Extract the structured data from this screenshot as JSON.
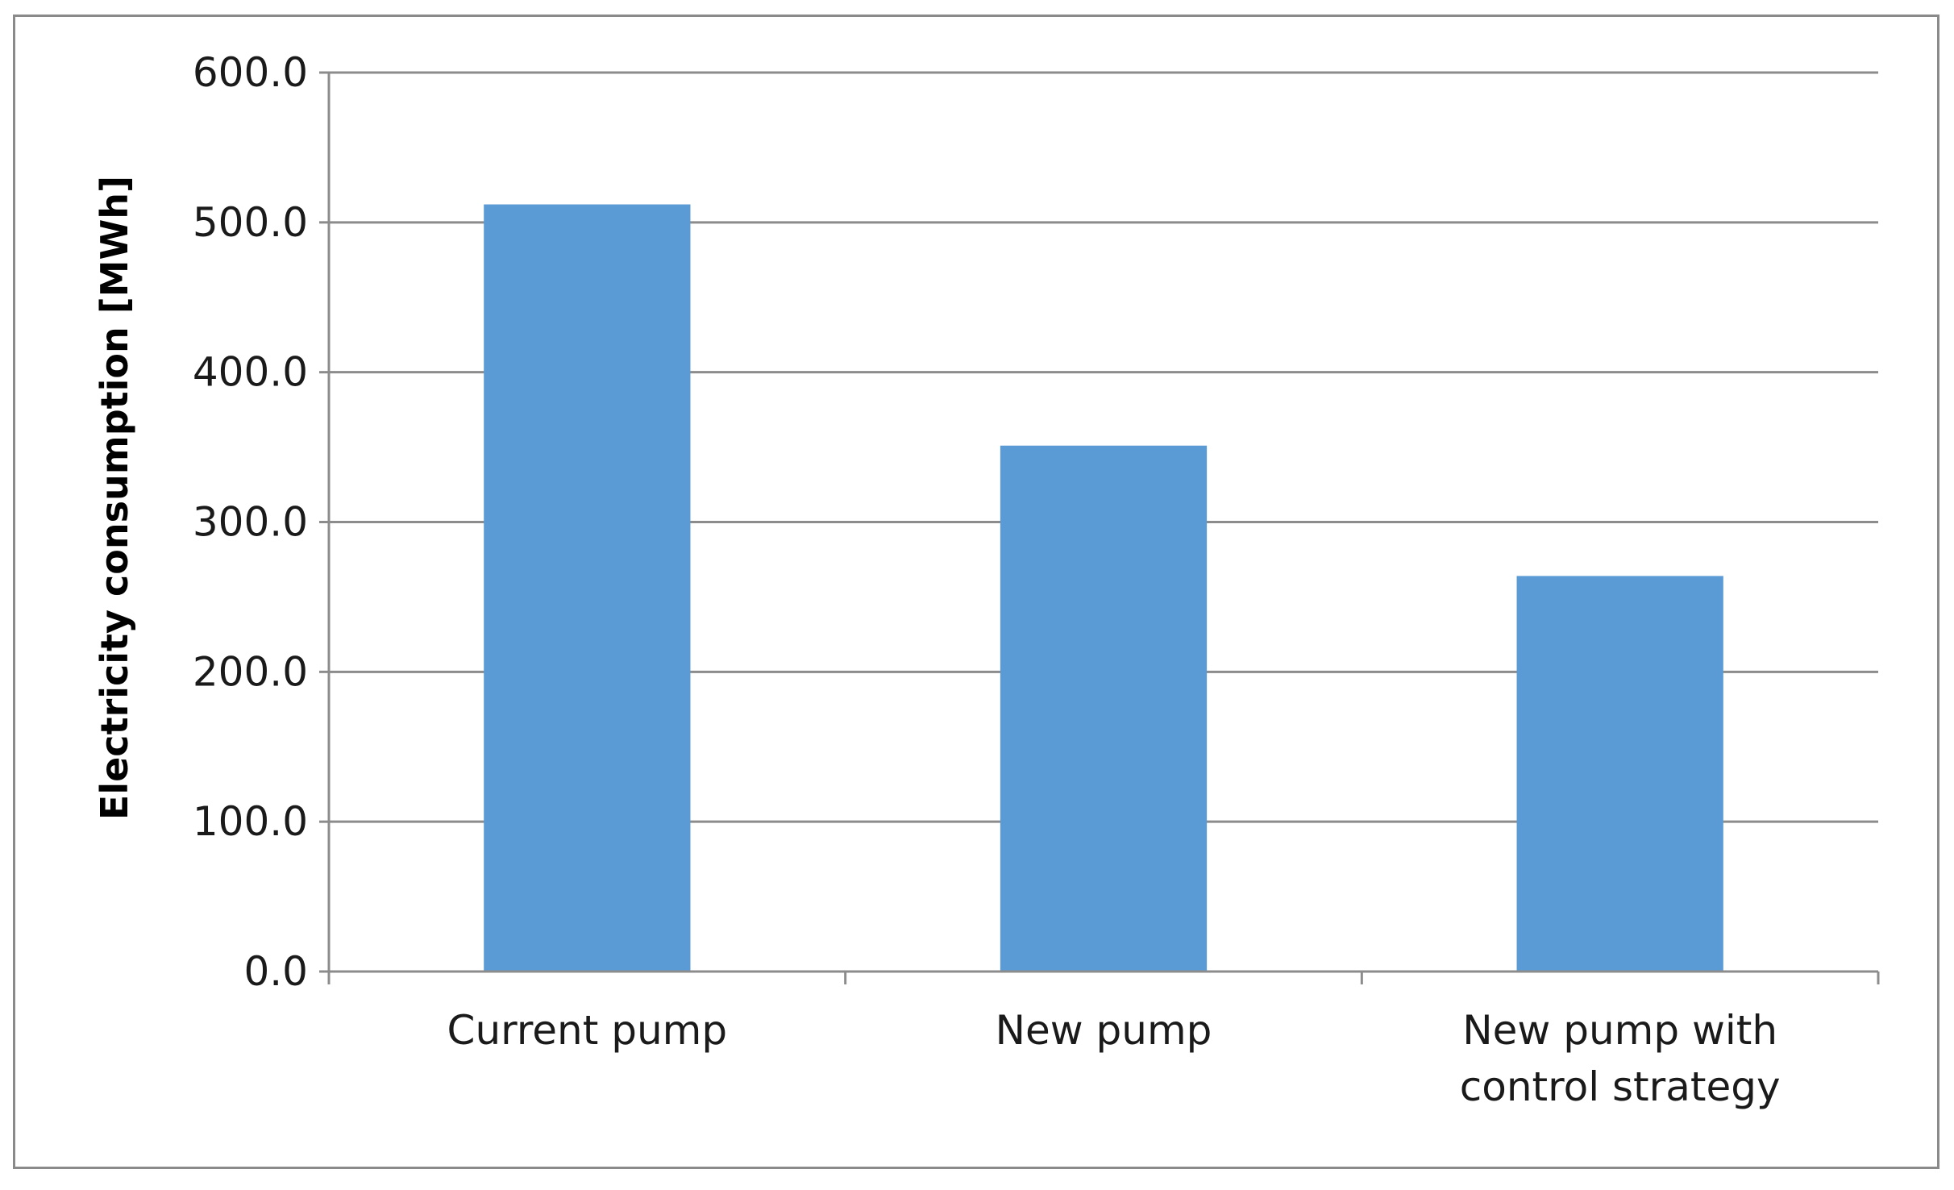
{
  "chart_data": {
    "type": "bar",
    "title": "",
    "xlabel": "",
    "ylabel": "Electricity consumption [MWh]",
    "categories": [
      [
        "Current pump"
      ],
      [
        "New pump"
      ],
      [
        "New pump with",
        "control strategy"
      ]
    ],
    "category_names": [
      "Current pump",
      "New pump",
      "New pump with control strategy"
    ],
    "values": [
      512,
      351,
      264
    ],
    "ylim": [
      0,
      600
    ],
    "yticks": [
      0,
      100,
      200,
      300,
      400,
      500,
      600
    ],
    "ytick_labels": [
      "0.0",
      "100.0",
      "200.0",
      "300.0",
      "400.0",
      "500.0",
      "600.0"
    ],
    "grid": true,
    "legend": "none",
    "colors": {
      "bar": "#5b9bd5",
      "grid": "#8c8c8c",
      "axis": "#8c8c8c",
      "frame": "#8a8a8a"
    }
  }
}
